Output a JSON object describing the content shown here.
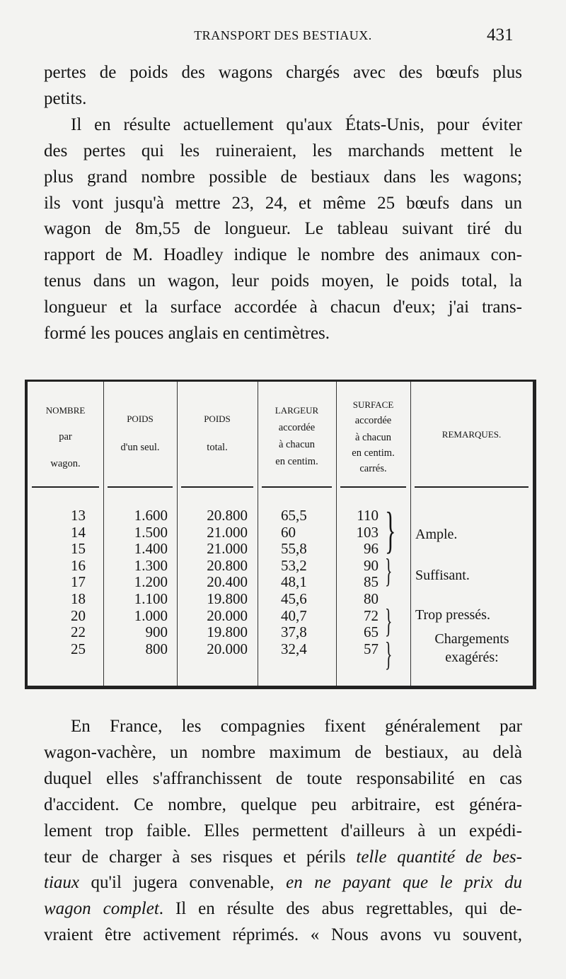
{
  "header": {
    "running_title": "TRANSPORT DES BESTIAUX.",
    "page_number": "431"
  },
  "top_lines": [
    {
      "text": "pertes de poids des wagons chargés avec des bœufs plus"
    },
    {
      "text": "petits.",
      "last": true
    },
    {
      "text": "Il en résulte actuellement qu'aux États-Unis, pour éviter",
      "indent": true
    },
    {
      "text": "des pertes qui les ruineraient, les marchands mettent le"
    },
    {
      "text": "plus grand nombre possible de bestiaux dans les wagons;"
    },
    {
      "text": "ils vont jusqu'à mettre 23, 24, et même 25 bœufs dans un"
    },
    {
      "text": "wagon de 8m,55 de longueur. Le tableau suivant tiré du"
    },
    {
      "text": "rapport de M. Hoadley indique le nombre des animaux con-"
    },
    {
      "text": "tenus dans un wagon, leur poids moyen, le poids total, la"
    },
    {
      "text": "longueur et la surface accordée à chacun d'eux; j'ai trans-"
    },
    {
      "text": "formé les pouces anglais en centimètres.",
      "last": true
    }
  ],
  "table": {
    "headers": [
      [
        "NOMBRE",
        "par",
        "wagon."
      ],
      [
        "POIDS",
        "d'un seul."
      ],
      [
        "POIDS",
        "total."
      ],
      [
        "LARGEUR",
        "accordée",
        "à chacun",
        "en centim."
      ],
      [
        "SURFACE",
        "accordée",
        "à chacun",
        "en centim.",
        "carrés."
      ],
      [
        "REMARQUES."
      ]
    ],
    "rows": [
      [
        "13",
        "1.600",
        "20.800",
        "65,5",
        "110"
      ],
      [
        "14",
        "1.500",
        "21.000",
        "60",
        "103"
      ],
      [
        "15",
        "1.400",
        "21.000",
        "55,8",
        "96"
      ],
      [
        "16",
        "1.300",
        "20.800",
        "53,2",
        "90"
      ],
      [
        "17",
        "1.200",
        "20.400",
        "48,1",
        "85"
      ],
      [
        "18",
        "1.100",
        "19.800",
        "45,6",
        "80"
      ],
      [
        "20",
        "1.000",
        "20.000",
        "40,7",
        "72"
      ],
      [
        "22",
        "900",
        "19.800",
        "37,8",
        "65"
      ],
      [
        "25",
        "800",
        "20.000",
        "32,4",
        "57"
      ]
    ],
    "remarks": [
      "Ample.",
      "Suffisant.",
      "Trop pressés.",
      "Chargements",
      "exagérés:"
    ]
  },
  "bottom_lines": [
    {
      "indent": true,
      "segs": [
        {
          "t": "En France, les compagnies fixent généralement par"
        }
      ]
    },
    {
      "segs": [
        {
          "t": "wagon-vachère, un nombre maximum de bestiaux, au delà"
        }
      ]
    },
    {
      "segs": [
        {
          "t": "duquel elles s'affranchissent de toute responsabilité en cas"
        }
      ]
    },
    {
      "segs": [
        {
          "t": "d'accident. Ce nombre, quelque peu arbitraire, est généra-"
        }
      ]
    },
    {
      "segs": [
        {
          "t": "lement trop faible. Elles permettent d'ailleurs à un expédi-"
        }
      ]
    },
    {
      "segs": [
        {
          "t": "teur de charger à ses risques et périls "
        },
        {
          "t": "telle quantité de bes-",
          "i": true
        }
      ]
    },
    {
      "segs": [
        {
          "t": "tiaux",
          "i": true
        },
        {
          "t": " qu'il jugera convenable, "
        },
        {
          "t": "en ne payant que le prix du",
          "i": true
        }
      ]
    },
    {
      "segs": [
        {
          "t": "wagon complet",
          "i": true
        },
        {
          "t": ". Il en résulte des abus regrettables, qui de-"
        }
      ]
    },
    {
      "segs": [
        {
          "t": "vraient être activement réprimés. « Nous avons vu souvent,"
        }
      ]
    }
  ]
}
